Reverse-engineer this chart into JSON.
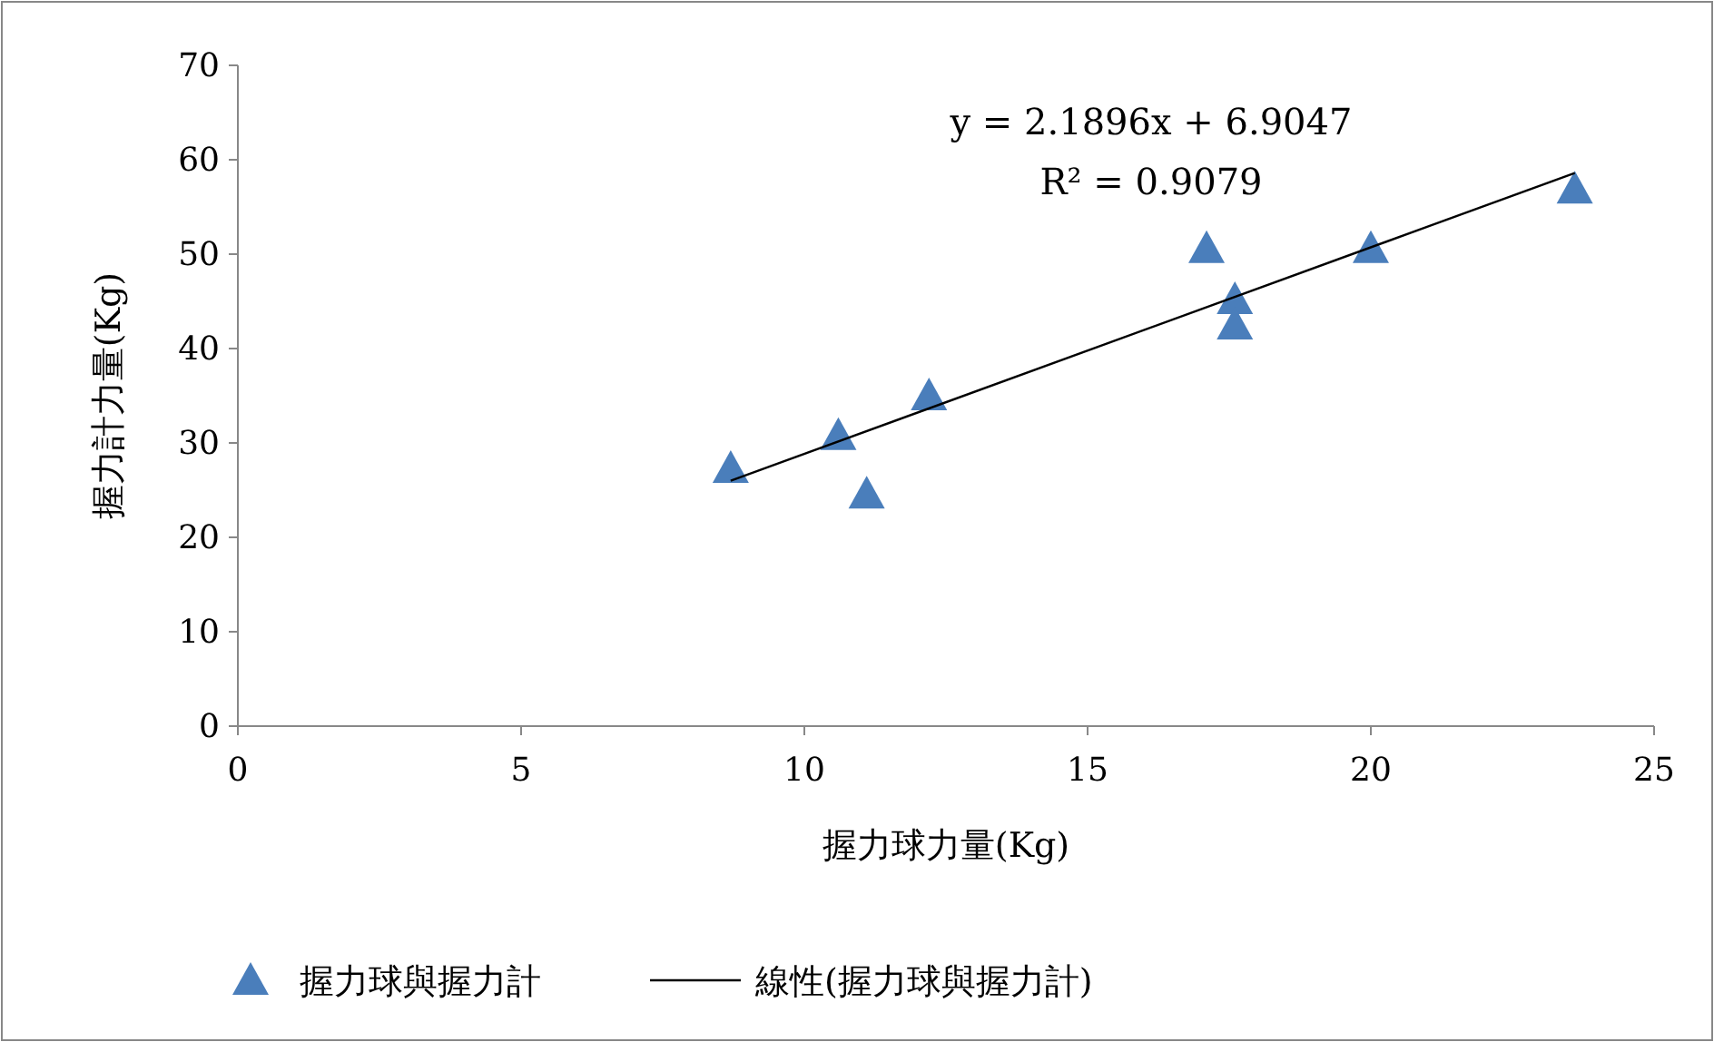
{
  "chart_data": {
    "type": "scatter",
    "xlabel": "握力球力量(Kg)",
    "ylabel": "握力計力量(Kg)",
    "xlim": [
      0,
      25
    ],
    "ylim": [
      0,
      70
    ],
    "xticks": [
      0,
      5,
      10,
      15,
      20,
      25
    ],
    "yticks": [
      0,
      10,
      20,
      30,
      40,
      50,
      60,
      70
    ],
    "grid": false,
    "legend": "bottom",
    "series": [
      {
        "name": "握力球與握力計",
        "marker": "triangle",
        "color": "#4a7ebb",
        "x": [
          8.7,
          10.6,
          11.1,
          12.2,
          17.1,
          17.6,
          17.6,
          20.0,
          23.6
        ],
        "values": [
          27.3,
          30.8,
          24.6,
          35.0,
          50.6,
          45.2,
          42.5,
          50.6,
          56.9
        ]
      },
      {
        "name": "線性(握力球與握力計)",
        "type": "line",
        "marker": "none",
        "line_style": "solid",
        "color": "#000000",
        "x": [
          8.7,
          23.6
        ],
        "values": [
          26.0,
          58.6
        ]
      }
    ],
    "annotations": [
      {
        "text": "y = 2.1896x + 6.9047"
      },
      {
        "text": "R² = 0.9079"
      }
    ]
  }
}
